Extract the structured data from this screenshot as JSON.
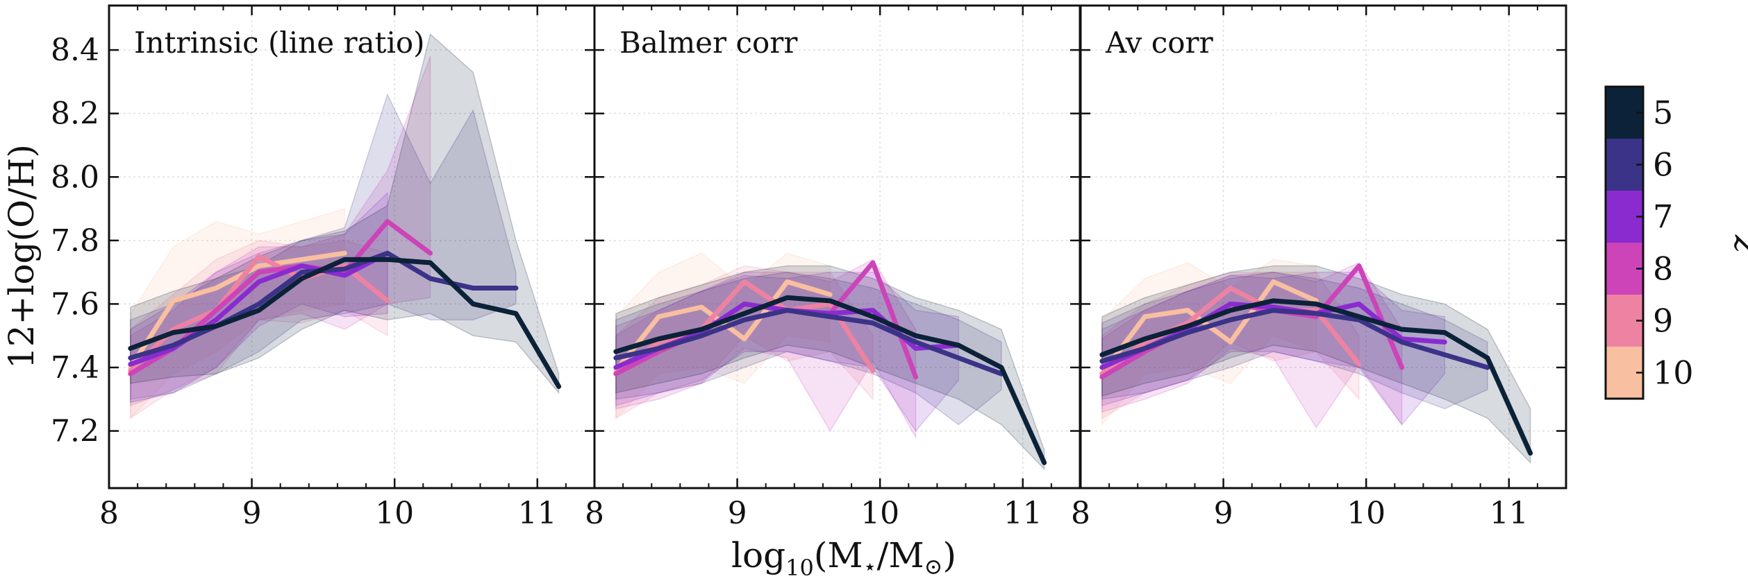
{
  "chart_data": {
    "type": "line",
    "shared": {
      "xlabel": "log10(M⋆/M⊙)",
      "xlabel_parts": {
        "base": "log",
        "sub": "10",
        "rest": "(M",
        "star": "⋆",
        "mid": "/M",
        "sun": "⊙",
        "end": ")"
      },
      "ylabel": "12+log(O/H)",
      "xlim": [
        8,
        11.4
      ],
      "ylim": [
        7.02,
        8.54
      ],
      "xticks": [
        8,
        9,
        10,
        11
      ],
      "xtick_labels": [
        "8",
        "9",
        "10",
        "11"
      ],
      "yticks": [
        7.2,
        7.4,
        7.6,
        7.8,
        8.0,
        8.2,
        8.4
      ],
      "ytick_labels": [
        "7.2",
        "7.4",
        "7.6",
        "7.8",
        "8.0",
        "8.2",
        "8.4"
      ],
      "grid": true,
      "colorbar": {
        "title": "z",
        "levels": [
          "5",
          "6",
          "7",
          "8",
          "9",
          "10"
        ],
        "colors": [
          "#0b2238",
          "#3a3388",
          "#8a2bd0",
          "#cc44b8",
          "#ee82a2",
          "#f8bfa0"
        ]
      }
    },
    "panels": [
      {
        "title": "Intrinsic (line ratio)",
        "series": [
          {
            "z": "10",
            "color": "#f8bfa0",
            "x": [
              8.15,
              8.45,
              8.75,
              9.05,
              9.35,
              9.65
            ],
            "y": [
              7.4,
              7.61,
              7.65,
              7.72,
              7.74,
              7.76
            ],
            "lo": [
              7.24,
              7.38,
              7.45,
              7.55,
              7.58,
              7.6
            ],
            "hi": [
              7.57,
              7.78,
              7.86,
              7.82,
              7.86,
              7.9
            ]
          },
          {
            "z": "9",
            "color": "#ee82a2",
            "x": [
              8.15,
              8.45,
              8.75,
              9.05,
              9.35,
              9.65,
              9.95
            ],
            "y": [
              7.39,
              7.52,
              7.58,
              7.75,
              7.68,
              7.72,
              7.61
            ],
            "lo": [
              7.24,
              7.33,
              7.38,
              7.55,
              7.54,
              7.58,
              7.5
            ],
            "hi": [
              7.52,
              7.63,
              7.74,
              7.8,
              7.78,
              7.8,
              7.76
            ]
          },
          {
            "z": "8",
            "color": "#cc44b8",
            "x": [
              8.15,
              8.45,
              8.75,
              9.05,
              9.35,
              9.65,
              9.95,
              10.25
            ],
            "y": [
              7.38,
              7.46,
              7.58,
              7.7,
              7.72,
              7.7,
              7.86,
              7.76
            ],
            "lo": [
              7.28,
              7.33,
              7.4,
              7.55,
              7.57,
              7.52,
              7.6,
              7.62
            ],
            "hi": [
              7.5,
              7.58,
              7.7,
              7.78,
              7.78,
              7.82,
              8.02,
              8.38
            ]
          },
          {
            "z": "7",
            "color": "#8a2bd0",
            "x": [
              8.15,
              8.45,
              8.75,
              9.05,
              9.35,
              9.65,
              9.95
            ],
            "y": [
              7.41,
              7.46,
              7.55,
              7.67,
              7.72,
              7.69,
              7.76
            ],
            "lo": [
              7.3,
              7.32,
              7.4,
              7.53,
              7.6,
              7.56,
              7.57
            ],
            "hi": [
              7.52,
              7.6,
              7.7,
              7.76,
              7.8,
              7.82,
              7.95
            ]
          },
          {
            "z": "6",
            "color": "#3a3388",
            "x": [
              8.15,
              8.45,
              8.75,
              9.05,
              9.35,
              9.65,
              9.95,
              10.25,
              10.55,
              10.85
            ],
            "y": [
              7.43,
              7.47,
              7.53,
              7.6,
              7.7,
              7.71,
              7.76,
              7.68,
              7.65,
              7.65
            ],
            "lo": [
              7.29,
              7.32,
              7.38,
              7.45,
              7.55,
              7.57,
              7.6,
              7.55,
              7.55,
              7.6
            ],
            "hi": [
              7.55,
              7.6,
              7.68,
              7.72,
              7.8,
              7.84,
              8.26,
              7.98,
              8.21,
              7.7
            ]
          },
          {
            "z": "5",
            "color": "#0b2238",
            "x": [
              8.15,
              8.45,
              8.75,
              9.05,
              9.35,
              9.65,
              9.95,
              10.25,
              10.55,
              10.85,
              11.15
            ],
            "y": [
              7.46,
              7.51,
              7.53,
              7.58,
              7.68,
              7.74,
              7.74,
              7.73,
              7.6,
              7.57,
              7.34
            ],
            "lo": [
              7.35,
              7.37,
              7.38,
              7.43,
              7.52,
              7.58,
              7.55,
              7.57,
              7.5,
              7.48,
              7.32
            ],
            "hi": [
              7.59,
              7.64,
              7.68,
              7.75,
              7.8,
              7.83,
              7.91,
              8.45,
              8.33,
              7.8,
              7.38
            ]
          }
        ]
      },
      {
        "title": "Balmer corr",
        "series": [
          {
            "z": "10",
            "color": "#f8bfa0",
            "x": [
              8.15,
              8.45,
              8.75,
              9.05,
              9.35,
              9.65
            ],
            "y": [
              7.39,
              7.56,
              7.59,
              7.49,
              7.67,
              7.63
            ],
            "lo": [
              7.24,
              7.38,
              7.4,
              7.35,
              7.5,
              7.48
            ],
            "hi": [
              7.56,
              7.7,
              7.76,
              7.65,
              7.76,
              7.72
            ]
          },
          {
            "z": "9",
            "color": "#ee82a2",
            "x": [
              8.15,
              8.45,
              8.75,
              9.05,
              9.35,
              9.65,
              9.95
            ],
            "y": [
              7.38,
              7.48,
              7.52,
              7.67,
              7.58,
              7.6,
              7.39
            ],
            "lo": [
              7.24,
              7.32,
              7.35,
              7.5,
              7.42,
              7.45,
              7.3
            ],
            "hi": [
              7.5,
              7.62,
              7.66,
              7.72,
              7.7,
              7.7,
              7.5
            ]
          },
          {
            "z": "8",
            "color": "#cc44b8",
            "x": [
              8.15,
              8.45,
              8.75,
              9.05,
              9.35,
              9.65,
              9.95,
              10.25
            ],
            "y": [
              7.38,
              7.45,
              7.51,
              7.6,
              7.58,
              7.57,
              7.73,
              7.37
            ],
            "lo": [
              7.27,
              7.3,
              7.35,
              7.46,
              7.43,
              7.2,
              7.42,
              7.18
            ],
            "hi": [
              7.5,
              7.58,
              7.64,
              7.7,
              7.7,
              7.67,
              7.74,
              7.52
            ]
          },
          {
            "z": "7",
            "color": "#8a2bd0",
            "x": [
              8.15,
              8.45,
              8.75,
              9.05,
              9.35,
              9.65,
              9.95,
              10.25,
              10.55
            ],
            "y": [
              7.4,
              7.46,
              7.51,
              7.6,
              7.58,
              7.57,
              7.58,
              7.46,
              7.47
            ],
            "lo": [
              7.28,
              7.32,
              7.36,
              7.45,
              7.45,
              7.42,
              7.4,
              7.2,
              7.36
            ],
            "hi": [
              7.53,
              7.58,
              7.64,
              7.69,
              7.68,
              7.7,
              7.7,
              7.58,
              7.56
            ]
          },
          {
            "z": "6",
            "color": "#3a3388",
            "x": [
              8.15,
              8.45,
              8.75,
              9.05,
              9.35,
              9.65,
              9.95,
              10.25,
              10.55,
              10.85
            ],
            "y": [
              7.43,
              7.46,
              7.5,
              7.55,
              7.58,
              7.56,
              7.54,
              7.48,
              7.43,
              7.38
            ],
            "lo": [
              7.3,
              7.32,
              7.35,
              7.4,
              7.45,
              7.42,
              7.38,
              7.32,
              7.22,
              7.33
            ],
            "hi": [
              7.55,
              7.6,
              7.64,
              7.68,
              7.7,
              7.68,
              7.65,
              7.6,
              7.55,
              7.48
            ]
          },
          {
            "z": "5",
            "color": "#0b2238",
            "x": [
              8.15,
              8.45,
              8.75,
              9.05,
              9.35,
              9.65,
              9.95,
              10.25,
              10.55,
              10.85,
              11.15
            ],
            "y": [
              7.45,
              7.49,
              7.52,
              7.57,
              7.62,
              7.61,
              7.56,
              7.5,
              7.47,
              7.4,
              7.1
            ],
            "lo": [
              7.32,
              7.35,
              7.38,
              7.43,
              7.47,
              7.45,
              7.4,
              7.35,
              7.3,
              7.22,
              7.08
            ],
            "hi": [
              7.57,
              7.62,
              7.66,
              7.7,
              7.72,
              7.72,
              7.68,
              7.62,
              7.58,
              7.52,
              7.14
            ]
          }
        ]
      },
      {
        "title": "Av corr",
        "series": [
          {
            "z": "10",
            "color": "#f8bfa0",
            "x": [
              8.15,
              8.45,
              8.75,
              9.05,
              9.35,
              9.65
            ],
            "y": [
              7.38,
              7.56,
              7.58,
              7.48,
              7.67,
              7.61
            ],
            "lo": [
              7.22,
              7.38,
              7.4,
              7.35,
              7.5,
              7.45
            ],
            "hi": [
              7.55,
              7.68,
              7.73,
              7.65,
              7.74,
              7.72
            ]
          },
          {
            "z": "9",
            "color": "#ee82a2",
            "x": [
              8.15,
              8.45,
              8.75,
              9.05,
              9.35,
              9.65,
              9.95
            ],
            "y": [
              7.38,
              7.48,
              7.54,
              7.65,
              7.58,
              7.58,
              7.41
            ],
            "lo": [
              7.24,
              7.32,
              7.36,
              7.48,
              7.42,
              7.45,
              7.3
            ],
            "hi": [
              7.5,
              7.6,
              7.66,
              7.7,
              7.7,
              7.7,
              7.5
            ]
          },
          {
            "z": "8",
            "color": "#cc44b8",
            "x": [
              8.15,
              8.45,
              8.75,
              9.05,
              9.35,
              9.65,
              9.95,
              10.25
            ],
            "y": [
              7.37,
              7.45,
              7.52,
              7.6,
              7.58,
              7.56,
              7.72,
              7.4
            ],
            "lo": [
              7.26,
              7.3,
              7.35,
              7.46,
              7.43,
              7.21,
              7.41,
              7.22
            ],
            "hi": [
              7.49,
              7.58,
              7.64,
              7.69,
              7.7,
              7.67,
              7.73,
              7.52
            ]
          },
          {
            "z": "7",
            "color": "#8a2bd0",
            "x": [
              8.15,
              8.45,
              8.75,
              9.05,
              9.35,
              9.65,
              9.95,
              10.25,
              10.55
            ],
            "y": [
              7.4,
              7.46,
              7.52,
              7.6,
              7.59,
              7.57,
              7.6,
              7.49,
              7.48
            ],
            "lo": [
              7.28,
              7.32,
              7.36,
              7.45,
              7.45,
              7.42,
              7.4,
              7.22,
              7.38
            ],
            "hi": [
              7.52,
              7.58,
              7.64,
              7.69,
              7.68,
              7.7,
              7.7,
              7.58,
              7.56
            ]
          },
          {
            "z": "6",
            "color": "#3a3388",
            "x": [
              8.15,
              8.45,
              8.75,
              9.05,
              9.35,
              9.65,
              9.95,
              10.25,
              10.55,
              10.85
            ],
            "y": [
              7.42,
              7.46,
              7.51,
              7.55,
              7.58,
              7.57,
              7.55,
              7.48,
              7.44,
              7.4
            ],
            "lo": [
              7.3,
              7.32,
              7.36,
              7.4,
              7.45,
              7.42,
              7.38,
              7.32,
              7.27,
              7.33
            ],
            "hi": [
              7.54,
              7.6,
              7.64,
              7.68,
              7.7,
              7.68,
              7.65,
              7.6,
              7.55,
              7.48
            ]
          },
          {
            "z": "5",
            "color": "#0b2238",
            "x": [
              8.15,
              8.45,
              8.75,
              9.05,
              9.35,
              9.65,
              9.95,
              10.25,
              10.55,
              10.85,
              11.15
            ],
            "y": [
              7.44,
              7.49,
              7.53,
              7.58,
              7.61,
              7.6,
              7.56,
              7.52,
              7.51,
              7.43,
              7.13
            ],
            "lo": [
              7.31,
              7.35,
              7.38,
              7.43,
              7.47,
              7.45,
              7.4,
              7.35,
              7.3,
              7.24,
              7.1
            ],
            "hi": [
              7.56,
              7.62,
              7.66,
              7.7,
              7.72,
              7.72,
              7.68,
              7.63,
              7.6,
              7.52,
              7.27
            ]
          }
        ]
      }
    ]
  }
}
